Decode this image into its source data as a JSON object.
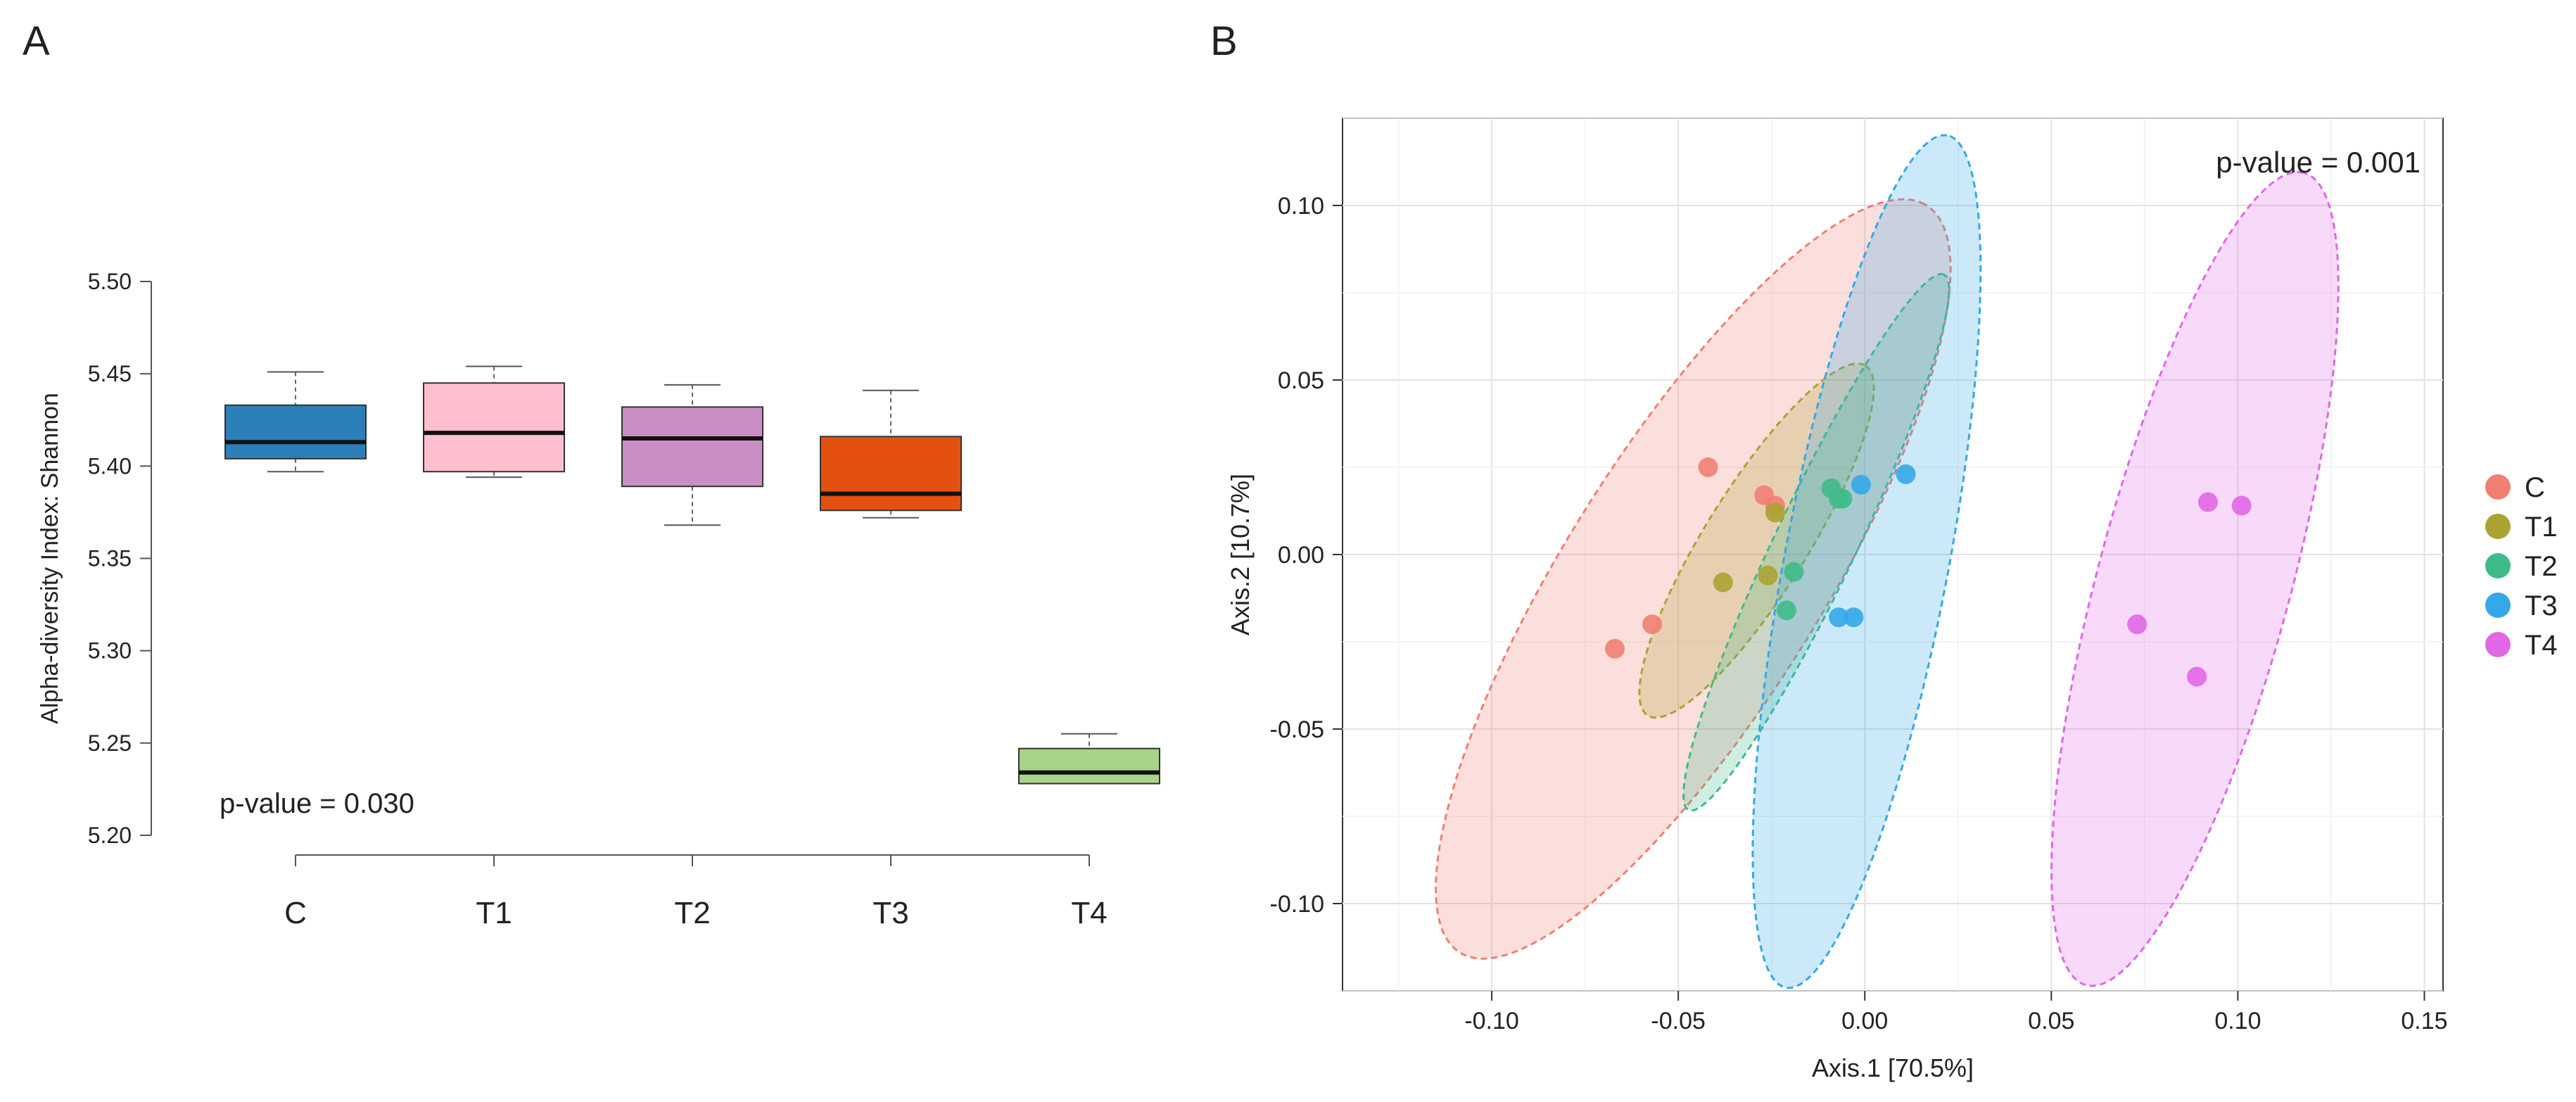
{
  "panels": {
    "a_label": "A",
    "b_label": "B"
  },
  "chart_data": [
    {
      "type": "box",
      "ylabel": "Alpha-diversity Index: Shannon",
      "ylim": [
        5.2,
        5.5
      ],
      "yticks": [
        "5.20",
        "5.25",
        "5.30",
        "5.35",
        "5.40",
        "5.45",
        "5.50"
      ],
      "categories": [
        "C",
        "T1",
        "T2",
        "T3",
        "T4"
      ],
      "annotation": "p-value = 0.030",
      "boxes": [
        {
          "name": "C",
          "color": "#2c7fb8",
          "whisker_low": 5.397,
          "q1": 5.404,
          "median": 5.413,
          "q3": 5.433,
          "whisker_high": 5.451
        },
        {
          "name": "T1",
          "color": "#ffbfcf",
          "whisker_low": 5.394,
          "q1": 5.397,
          "median": 5.418,
          "q3": 5.445,
          "whisker_high": 5.454
        },
        {
          "name": "T2",
          "color": "#c98fc4",
          "whisker_low": 5.368,
          "q1": 5.389,
          "median": 5.415,
          "q3": 5.432,
          "whisker_high": 5.444
        },
        {
          "name": "T3",
          "color": "#e4510f",
          "whisker_low": 5.372,
          "q1": 5.376,
          "median": 5.385,
          "q3": 5.416,
          "whisker_high": 5.441
        },
        {
          "name": "T4",
          "color": "#a8d48a",
          "whisker_low": 5.228,
          "q1": 5.228,
          "median": 5.234,
          "q3": 5.247,
          "whisker_high": 5.255
        }
      ]
    },
    {
      "type": "scatter",
      "xlabel": "Axis.1 [70.5%]",
      "ylabel": "Axis.2 [10.7%]",
      "xlim": [
        -0.14,
        0.155
      ],
      "ylim": [
        -0.125,
        0.125
      ],
      "xticks": [
        "-0.10",
        "-0.05",
        "0.00",
        "0.05",
        "0.10",
        "0.15"
      ],
      "yticks": [
        "-0.10",
        "-0.05",
        "0.00",
        "0.05",
        "0.10"
      ],
      "annotation": "p-value = 0.001",
      "legend_position": "right",
      "series": [
        {
          "name": "C",
          "color": "#f07f72",
          "points": [
            [
              -0.067,
              -0.027
            ],
            [
              -0.057,
              -0.02
            ],
            [
              -0.042,
              0.025
            ],
            [
              -0.027,
              0.017
            ],
            [
              -0.024,
              0.014
            ]
          ],
          "ellipse": {
            "center": [
              -0.046,
              -0.007
            ],
            "semi_major": 0.124,
            "semi_minor": 0.035,
            "angle_deg": 60
          }
        },
        {
          "name": "T1",
          "color": "#aaa332",
          "points": [
            [
              -0.038,
              -0.008
            ],
            [
              -0.026,
              -0.006
            ],
            [
              -0.024,
              0.012
            ]
          ],
          "ellipse": {
            "center": [
              -0.029,
              0.004
            ],
            "semi_major": 0.058,
            "semi_minor": 0.014,
            "angle_deg": 60
          }
        },
        {
          "name": "T2",
          "color": "#3fbb8a",
          "points": [
            [
              -0.021,
              -0.016
            ],
            [
              -0.019,
              -0.005
            ],
            [
              -0.009,
              0.019
            ],
            [
              -0.007,
              0.016
            ],
            [
              -0.006,
              0.016
            ]
          ],
          "ellipse": {
            "center": [
              -0.013,
              0.0035
            ],
            "semi_major": 0.084,
            "semi_minor": 0.011,
            "angle_deg": 66
          }
        },
        {
          "name": "T3",
          "color": "#34a8e8",
          "points": [
            [
              -0.007,
              -0.018
            ],
            [
              -0.003,
              -0.018
            ],
            [
              -0.001,
              0.02
            ],
            [
              0.011,
              0.023
            ]
          ],
          "ellipse": {
            "center": [
              0.0005,
              -0.002
            ],
            "semi_major": 0.124,
            "semi_minor": 0.022,
            "angle_deg": 80
          }
        },
        {
          "name": "T4",
          "color": "#e167e6",
          "points": [
            [
              0.073,
              -0.02
            ],
            [
              0.089,
              -0.035
            ],
            [
              0.092,
              0.015
            ],
            [
              0.101,
              0.014
            ]
          ],
          "ellipse": {
            "center": [
              0.0885,
              -0.007
            ],
            "semi_major": 0.12,
            "semi_minor": 0.026,
            "angle_deg": 76
          }
        }
      ]
    }
  ]
}
